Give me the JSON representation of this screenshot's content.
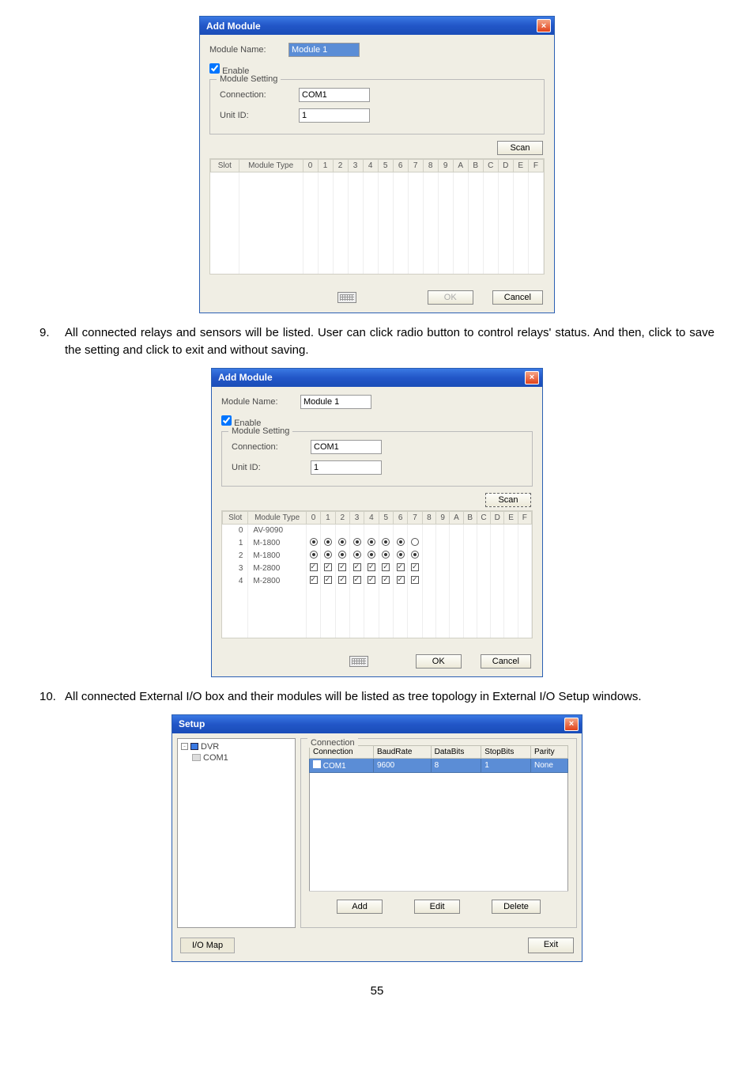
{
  "dialog1": {
    "title": "Add Module",
    "moduleNameLabel": "Module Name:",
    "moduleNameValue": "Module 1",
    "enableLabel": "Enable",
    "moduleSettingLegend": "Module Setting",
    "connectionLabel": "Connection:",
    "connectionValue": "COM1",
    "unitIdLabel": "Unit ID:",
    "unitIdValue": "1",
    "scanLabel": "Scan",
    "headers": {
      "slot": "Slot",
      "moduleType": "Module Type"
    },
    "hexCols": [
      "0",
      "1",
      "2",
      "3",
      "4",
      "5",
      "6",
      "7",
      "8",
      "9",
      "A",
      "B",
      "C",
      "D",
      "E",
      "F"
    ],
    "okLabel": "OK",
    "cancelLabel": "Cancel"
  },
  "instruction9": {
    "num": "9.",
    "text": "All connected relays and sensors will be listed. User can click radio button to control relays' status. And then, click         to save the setting and click              to exit and without saving."
  },
  "dialog2": {
    "title": "Add Module",
    "moduleNameLabel": "Module Name:",
    "moduleNameValue": "Module 1",
    "enableLabel": "Enable",
    "moduleSettingLegend": "Module Setting",
    "connectionLabel": "Connection:",
    "connectionValue": "COM1",
    "unitIdLabel": "Unit ID:",
    "unitIdValue": "1",
    "scanLabel": "Scan",
    "headers": {
      "slot": "Slot",
      "moduleType": "Module Type"
    },
    "hexCols": [
      "0",
      "1",
      "2",
      "3",
      "4",
      "5",
      "6",
      "7",
      "8",
      "9",
      "A",
      "B",
      "C",
      "D",
      "E",
      "F"
    ],
    "rows": [
      {
        "slot": "0",
        "type": "AV-9090",
        "kind": "none"
      },
      {
        "slot": "1",
        "type": "M-1800",
        "kind": "radio",
        "on": [
          true,
          true,
          true,
          true,
          true,
          true,
          true,
          false
        ]
      },
      {
        "slot": "2",
        "type": "M-1800",
        "kind": "radio",
        "on": [
          true,
          true,
          true,
          true,
          true,
          true,
          true,
          true
        ]
      },
      {
        "slot": "3",
        "type": "M-2800",
        "kind": "check",
        "on": [
          true,
          true,
          true,
          true,
          true,
          true,
          true,
          true
        ]
      },
      {
        "slot": "4",
        "type": "M-2800",
        "kind": "check",
        "on": [
          true,
          true,
          true,
          true,
          true,
          true,
          true,
          true
        ]
      }
    ],
    "okLabel": "OK",
    "cancelLabel": "Cancel"
  },
  "instruction10": {
    "num": "10.",
    "text": "All connected External I/O box and their modules will be listed as tree topology in External I/O Setup windows."
  },
  "dialog3": {
    "title": "Setup",
    "tree": {
      "root": "DVR",
      "child": "COM1"
    },
    "connectionLegend": "Connection",
    "headers": {
      "conn": "Connection",
      "baud": "BaudRate",
      "data": "DataBits",
      "stop": "StopBits",
      "parity": "Parity"
    },
    "row": {
      "conn": "COM1",
      "baud": "9600",
      "data": "8",
      "stop": "1",
      "parity": "None"
    },
    "addLabel": "Add",
    "editLabel": "Edit",
    "deleteLabel": "Delete",
    "ioMapLabel": "I/O Map",
    "exitLabel": "Exit"
  },
  "pageNumber": "55"
}
